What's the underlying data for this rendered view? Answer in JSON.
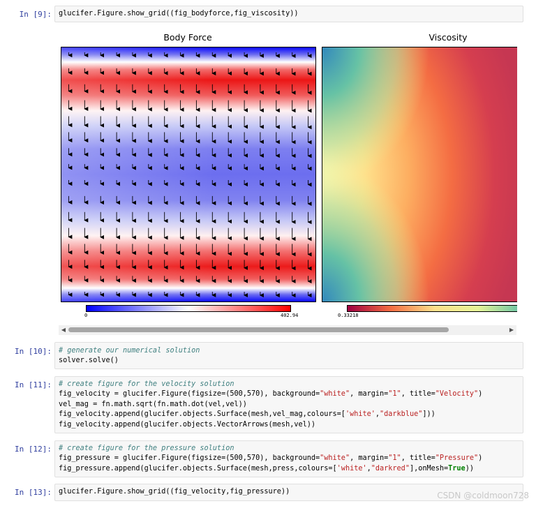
{
  "cells": [
    {
      "prompt": "In  [9]:",
      "lines": [
        [
          {
            "t": "glucifer.Figure.show_grid((fig_bodyforce,fig_viscosity))"
          }
        ]
      ]
    },
    {
      "prompt": "In  [10]:",
      "lines": [
        [
          {
            "t": "# generate our numerical solution",
            "c": "cm"
          }
        ],
        [
          {
            "t": "solver.solve()"
          }
        ]
      ]
    },
    {
      "prompt": "In  [11]:",
      "lines": [
        [
          {
            "t": "# create figure for the velocity solution",
            "c": "cm"
          }
        ],
        [
          {
            "t": "fig_velocity = glucifer.Figure(figsize=(500,570), background="
          },
          {
            "t": "\"white\"",
            "c": "st"
          },
          {
            "t": ", margin="
          },
          {
            "t": "\"1\"",
            "c": "st"
          },
          {
            "t": ", title="
          },
          {
            "t": "\"Velocity\"",
            "c": "st"
          },
          {
            "t": ")"
          }
        ],
        [
          {
            "t": "vel_mag = fn.math.sqrt(fn.math.dot(vel,vel))"
          }
        ],
        [
          {
            "t": "fig_velocity.append(glucifer.objects.Surface(mesh,vel_mag,colours=["
          },
          {
            "t": "'white'",
            "c": "st"
          },
          {
            "t": ","
          },
          {
            "t": "\"darkblue\"",
            "c": "st"
          },
          {
            "t": "]))"
          }
        ],
        [
          {
            "t": "fig_velocity.append(glucifer.objects.VectorArrows(mesh,vel))"
          }
        ]
      ]
    },
    {
      "prompt": "In  [12]:",
      "lines": [
        [
          {
            "t": "# create figure for the pressure solution",
            "c": "cm"
          }
        ],
        [
          {
            "t": "fig_pressure = glucifer.Figure(figsize=(500,570), background="
          },
          {
            "t": "\"white\"",
            "c": "st"
          },
          {
            "t": ", margin="
          },
          {
            "t": "\"1\"",
            "c": "st"
          },
          {
            "t": ", title="
          },
          {
            "t": "\"Pressure\"",
            "c": "st"
          },
          {
            "t": ")"
          }
        ],
        [
          {
            "t": "fig_pressure.append(glucifer.objects.Surface(mesh,press,colours=["
          },
          {
            "t": "'white'",
            "c": "st"
          },
          {
            "t": ","
          },
          {
            "t": "\"darkred\"",
            "c": "st"
          },
          {
            "t": "],onMesh="
          },
          {
            "t": "True",
            "c": "kw"
          },
          {
            "t": "))"
          }
        ]
      ]
    },
    {
      "prompt": "In  [13]:",
      "lines": [
        [
          {
            "t": "glucifer.Figure.show_grid((fig_velocity,fig_pressure))"
          }
        ]
      ]
    }
  ],
  "figures": {
    "body_force": {
      "title": "Body Force",
      "cbar_min": "0",
      "cbar_max": "402.94"
    },
    "viscosity": {
      "title": "Viscosity",
      "cbar_min": "0.33218"
    }
  },
  "scrollbar": {
    "left_arrow": "◀",
    "right_arrow": "▶"
  },
  "watermark": "CSDN @coldmoon728",
  "colors": {
    "prompt": "#303f9f",
    "comment": "#408080",
    "string": "#ba2121",
    "keyword": "#008000"
  }
}
